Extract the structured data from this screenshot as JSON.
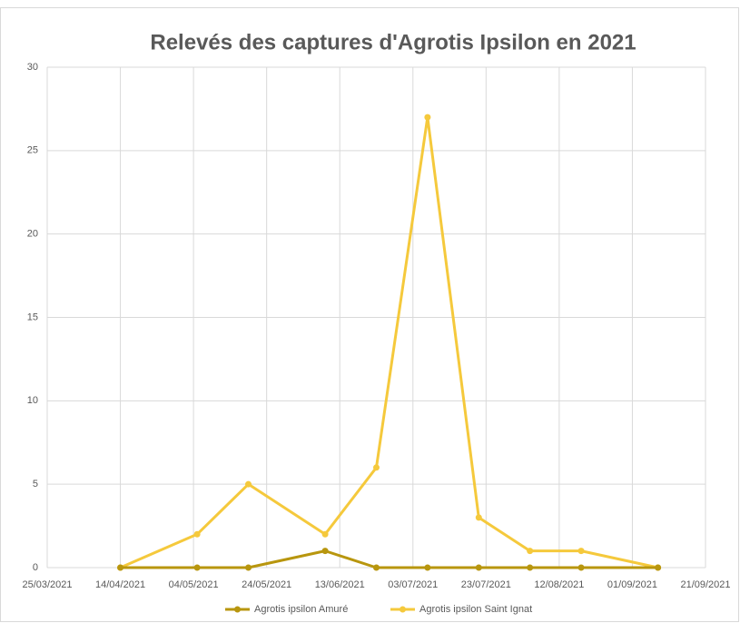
{
  "chart_data": {
    "type": "line",
    "title": "Relevés des captures d'Agrotis Ipsilon en 2021",
    "x": [
      "2021-04-14",
      "2021-05-05",
      "2021-05-19",
      "2021-06-09",
      "2021-06-23",
      "2021-07-07",
      "2021-07-21",
      "2021-08-04",
      "2021-08-18",
      "2021-09-08"
    ],
    "series": [
      {
        "name": "Agrotis ipsilon Amuré",
        "color": "#b8960e",
        "values": [
          0,
          0,
          0,
          1,
          0,
          0,
          0,
          0,
          0,
          0
        ]
      },
      {
        "name": "Agrotis ipsilon Saint Ignat",
        "color": "#f5c93c",
        "values": [
          0,
          2,
          5,
          2,
          6,
          27,
          3,
          1,
          1,
          0
        ]
      }
    ],
    "xlim": [
      "2021-03-25",
      "2021-09-21"
    ],
    "xticks": [
      {
        "value": "2021-03-25",
        "label": "25/03/2021"
      },
      {
        "value": "2021-04-14",
        "label": "14/04/2021"
      },
      {
        "value": "2021-05-04",
        "label": "04/05/2021"
      },
      {
        "value": "2021-05-24",
        "label": "24/05/2021"
      },
      {
        "value": "2021-06-13",
        "label": "13/06/2021"
      },
      {
        "value": "2021-07-03",
        "label": "03/07/2021"
      },
      {
        "value": "2021-07-23",
        "label": "23/07/2021"
      },
      {
        "value": "2021-08-12",
        "label": "12/08/2021"
      },
      {
        "value": "2021-09-01",
        "label": "01/09/2021"
      },
      {
        "value": "2021-09-21",
        "label": "21/09/2021"
      }
    ],
    "ylim": [
      0,
      30
    ],
    "yticks": [
      0,
      5,
      10,
      15,
      20,
      25,
      30
    ],
    "grid": true,
    "legend": "bottom"
  }
}
